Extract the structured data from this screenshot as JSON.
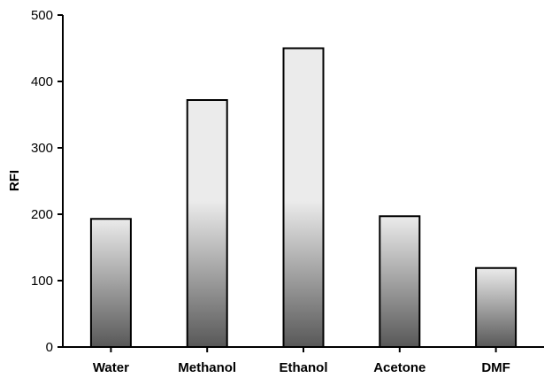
{
  "chart_data": {
    "type": "bar",
    "title": "",
    "xlabel": "",
    "ylabel": "RFI",
    "categories": [
      "Water",
      "Methanol",
      "Ethanol",
      "Acetone",
      "DMF"
    ],
    "values": [
      193,
      372,
      450,
      197,
      119
    ],
    "ylim": [
      0,
      500
    ],
    "yticks": [
      0,
      100,
      200,
      300,
      400,
      500
    ],
    "grid": false,
    "legend": "none",
    "colors": {
      "bar_top": "#ebebeb",
      "bar_bottom": "#585858",
      "bar_stroke": "#000000",
      "axis": "#000000"
    }
  }
}
